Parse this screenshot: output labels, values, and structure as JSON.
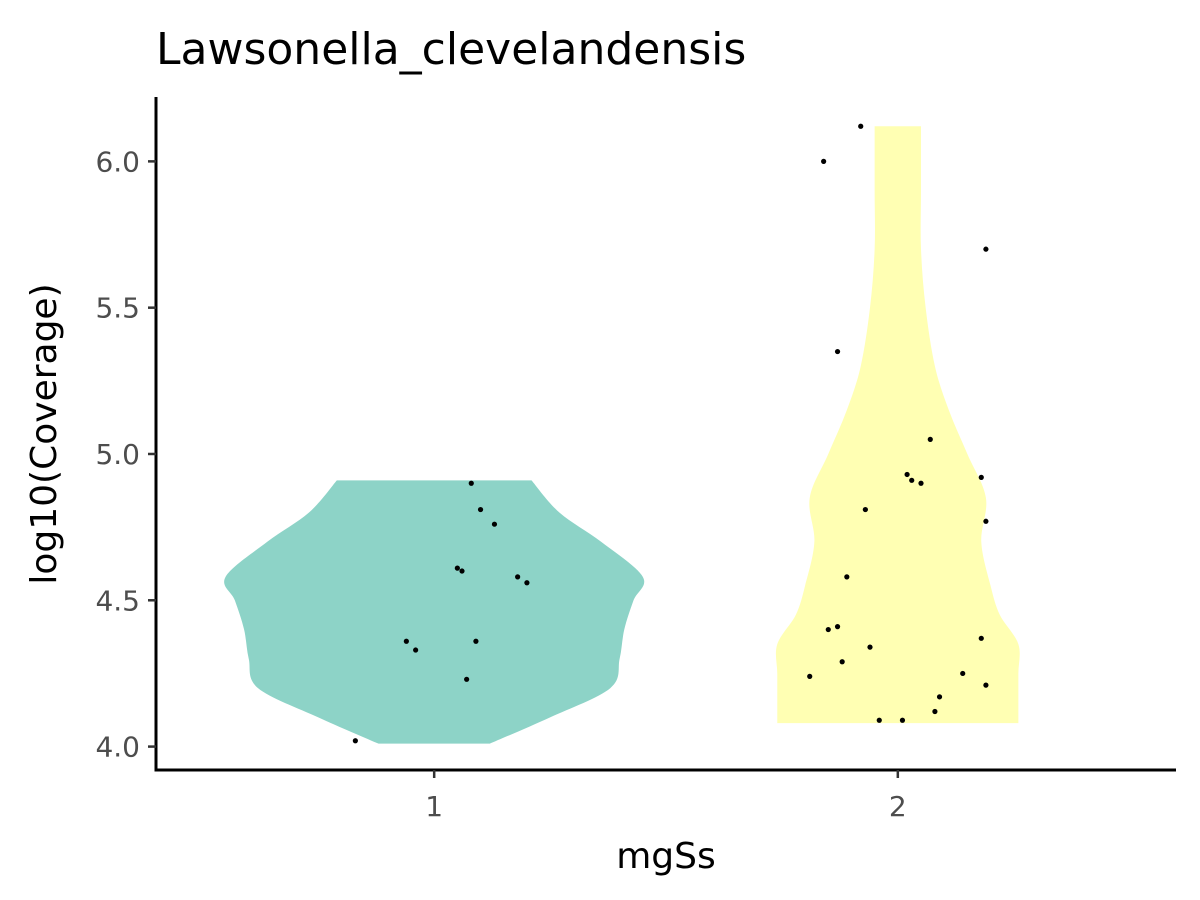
{
  "chart_data": {
    "type": "violin",
    "title": "Lawsonella_clevelandensis",
    "xlabel": "mgSs",
    "ylabel": "log10(Coverage)",
    "categories": [
      "1",
      "2"
    ],
    "ylim": [
      3.92,
      6.22
    ],
    "yticks": [
      "4.0",
      "4.5",
      "5.0",
      "5.5",
      "6.0"
    ],
    "grid": false,
    "legend": "none",
    "colors": {
      "1": "#8dd3c7",
      "2": "#ffffb3"
    },
    "series": [
      {
        "category": "1",
        "points": [
          {
            "x": 0.83,
            "y": 4.02
          },
          {
            "x": 0.94,
            "y": 4.36
          },
          {
            "x": 0.96,
            "y": 4.33
          },
          {
            "x": 1.05,
            "y": 4.61
          },
          {
            "x": 1.06,
            "y": 4.6
          },
          {
            "x": 1.07,
            "y": 4.23
          },
          {
            "x": 1.08,
            "y": 4.9
          },
          {
            "x": 1.09,
            "y": 4.36
          },
          {
            "x": 1.1,
            "y": 4.81
          },
          {
            "x": 1.13,
            "y": 4.76
          },
          {
            "x": 1.18,
            "y": 4.58
          },
          {
            "x": 1.2,
            "y": 4.56
          }
        ],
        "density": [
          {
            "y": 4.01,
            "w": 0.12
          },
          {
            "y": 4.1,
            "w": 0.25
          },
          {
            "y": 4.2,
            "w": 0.38
          },
          {
            "y": 4.3,
            "w": 0.4
          },
          {
            "y": 4.4,
            "w": 0.41
          },
          {
            "y": 4.5,
            "w": 0.43
          },
          {
            "y": 4.58,
            "w": 0.45
          },
          {
            "y": 4.7,
            "w": 0.36
          },
          {
            "y": 4.8,
            "w": 0.27
          },
          {
            "y": 4.91,
            "w": 0.21
          }
        ]
      },
      {
        "category": "2",
        "points": [
          {
            "x": 1.92,
            "y": 6.12
          },
          {
            "x": 1.84,
            "y": 6.0
          },
          {
            "x": 2.19,
            "y": 5.7
          },
          {
            "x": 1.87,
            "y": 5.35
          },
          {
            "x": 2.07,
            "y": 5.05
          },
          {
            "x": 2.02,
            "y": 4.93
          },
          {
            "x": 2.18,
            "y": 4.92
          },
          {
            "x": 2.03,
            "y": 4.91
          },
          {
            "x": 2.05,
            "y": 4.9
          },
          {
            "x": 1.93,
            "y": 4.81
          },
          {
            "x": 2.19,
            "y": 4.77
          },
          {
            "x": 1.89,
            "y": 4.58
          },
          {
            "x": 1.87,
            "y": 4.41
          },
          {
            "x": 1.85,
            "y": 4.4
          },
          {
            "x": 2.18,
            "y": 4.37
          },
          {
            "x": 1.94,
            "y": 4.34
          },
          {
            "x": 1.88,
            "y": 4.29
          },
          {
            "x": 2.14,
            "y": 4.25
          },
          {
            "x": 1.81,
            "y": 4.24
          },
          {
            "x": 2.19,
            "y": 4.21
          },
          {
            "x": 2.09,
            "y": 4.17
          },
          {
            "x": 2.08,
            "y": 4.12
          },
          {
            "x": 1.96,
            "y": 4.09
          },
          {
            "x": 2.01,
            "y": 4.09
          }
        ],
        "density": [
          {
            "y": 4.08,
            "w": 0.26
          },
          {
            "y": 4.15,
            "w": 0.26
          },
          {
            "y": 4.25,
            "w": 0.26
          },
          {
            "y": 4.35,
            "w": 0.26
          },
          {
            "y": 4.45,
            "w": 0.22
          },
          {
            "y": 4.55,
            "w": 0.2
          },
          {
            "y": 4.7,
            "w": 0.18
          },
          {
            "y": 4.85,
            "w": 0.19
          },
          {
            "y": 5.0,
            "w": 0.15
          },
          {
            "y": 5.15,
            "w": 0.11
          },
          {
            "y": 5.3,
            "w": 0.08
          },
          {
            "y": 5.5,
            "w": 0.06
          },
          {
            "y": 5.7,
            "w": 0.05
          },
          {
            "y": 5.9,
            "w": 0.05
          },
          {
            "y": 6.12,
            "w": 0.05
          }
        ]
      }
    ]
  }
}
